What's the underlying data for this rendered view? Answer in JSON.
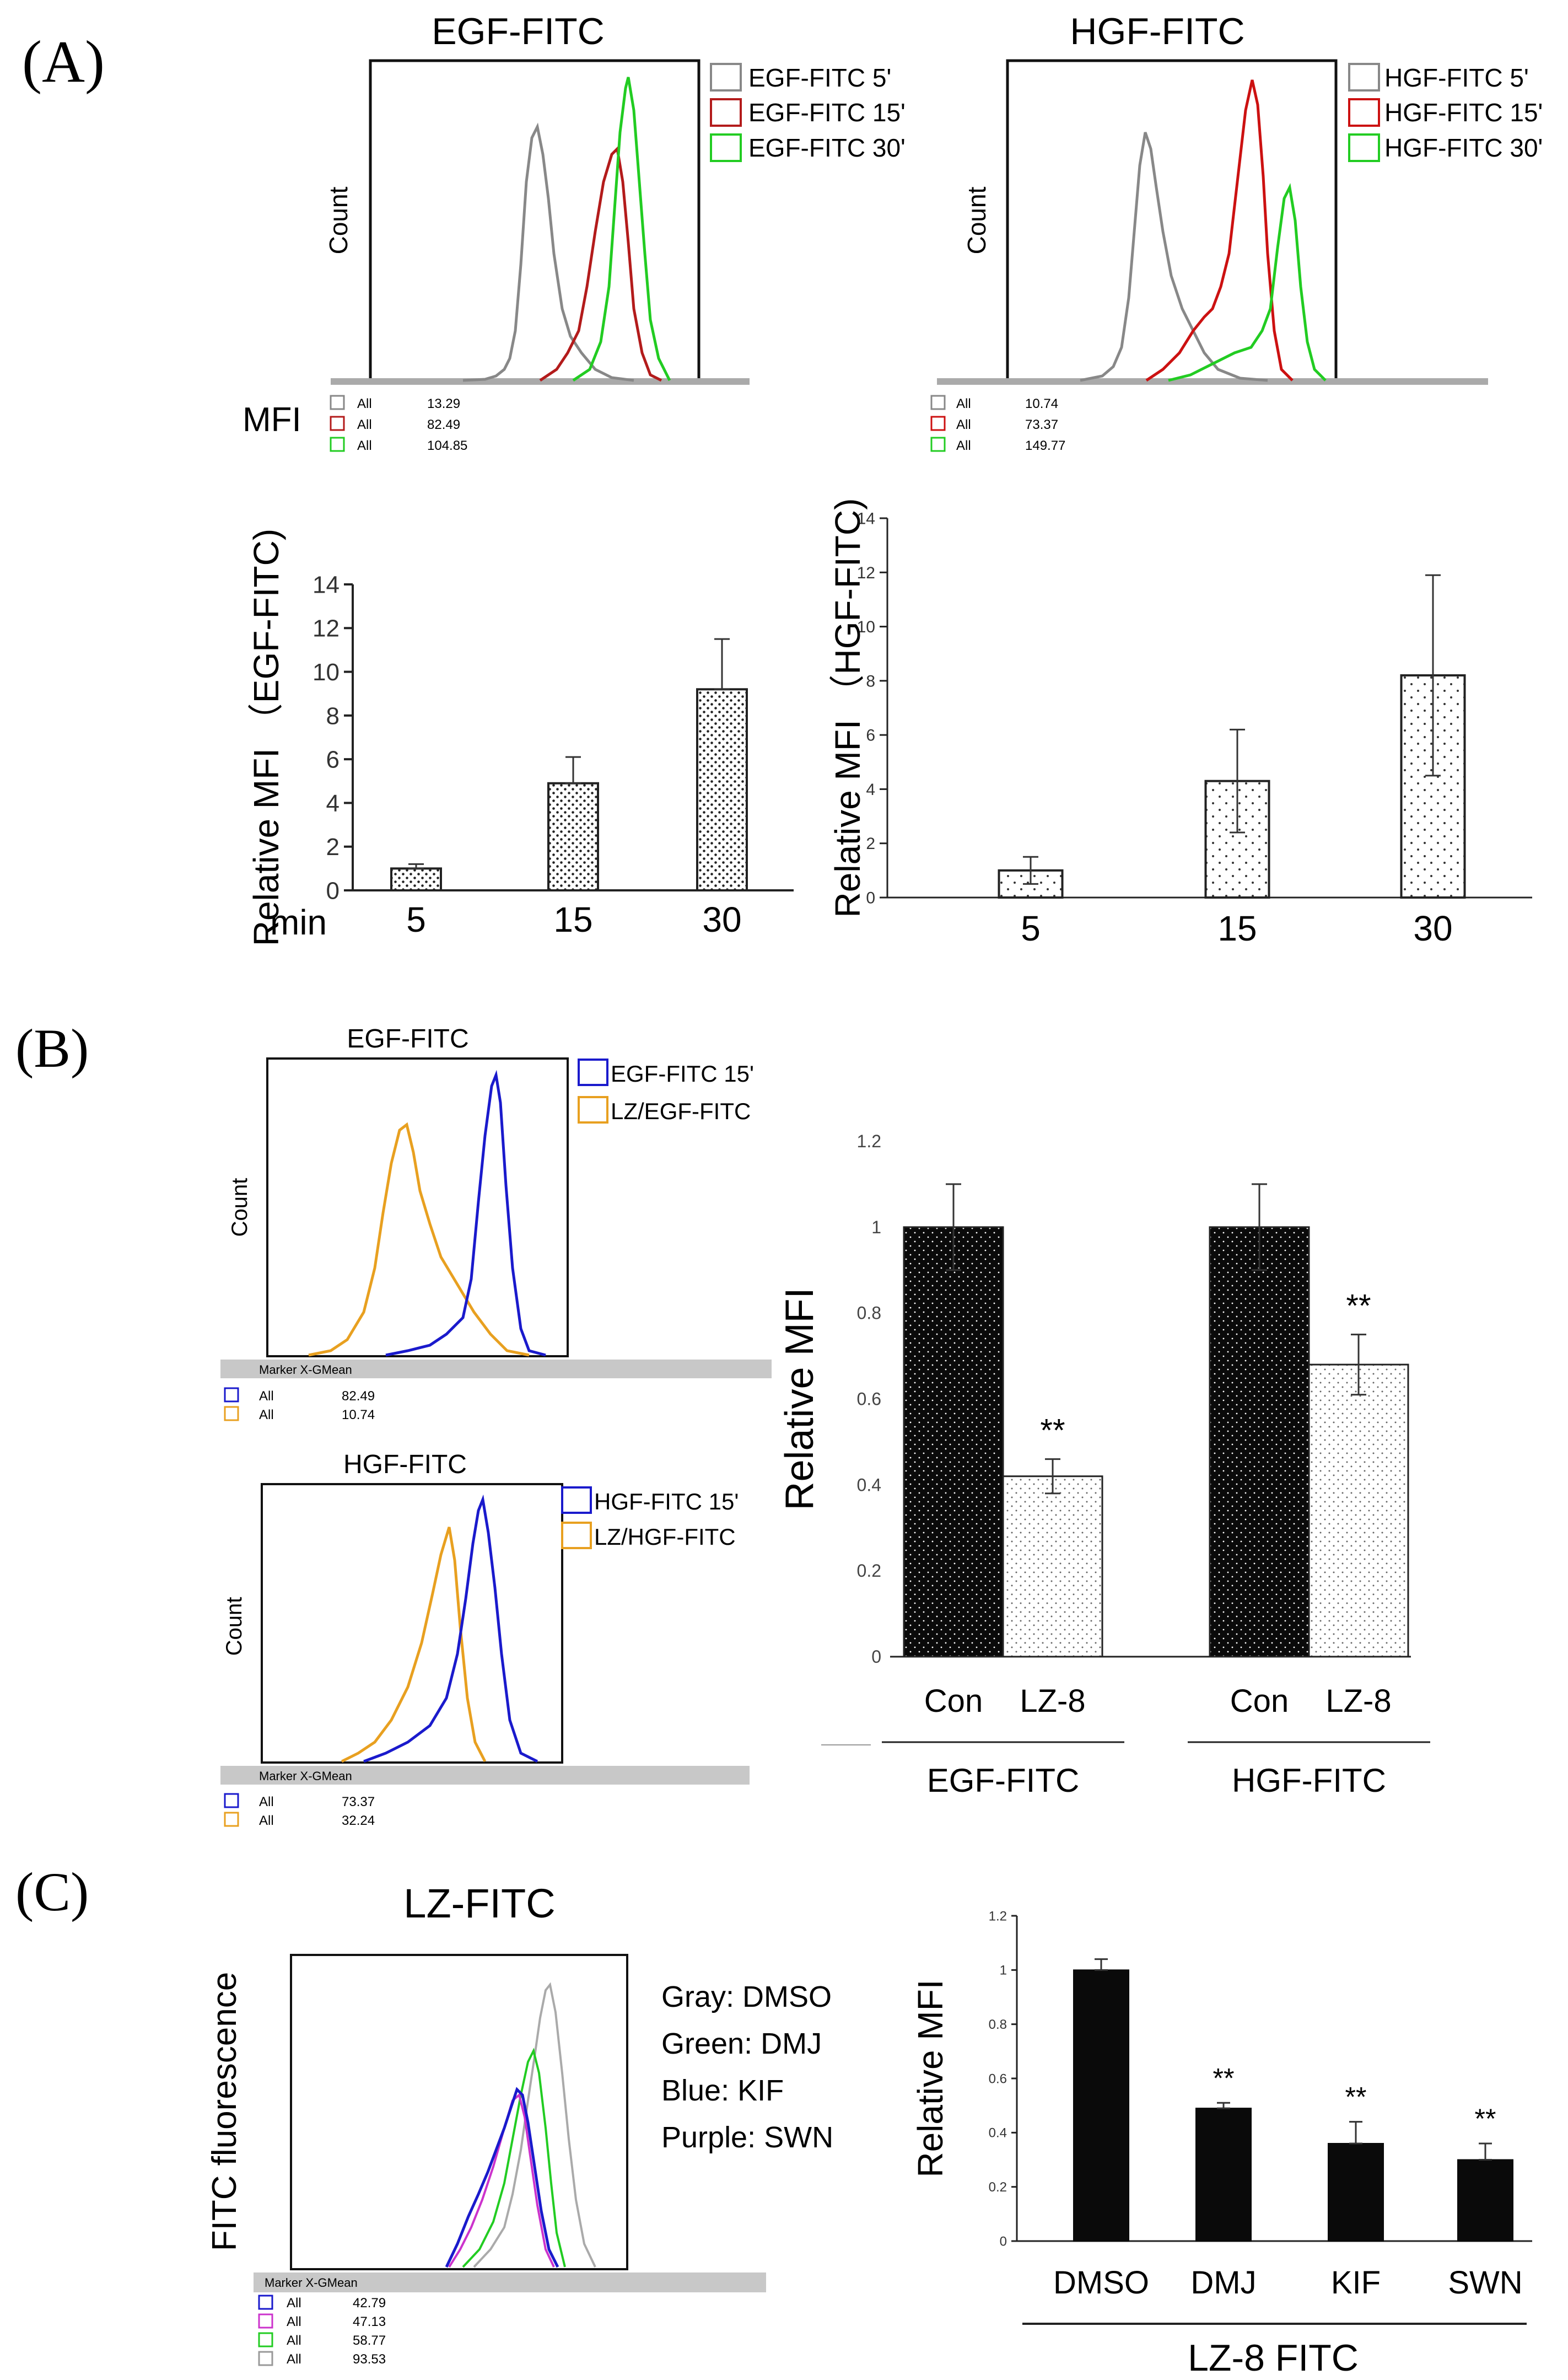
{
  "panels": {
    "A": {
      "label": "(A)",
      "egf_hist": {
        "title": "EGF-FITC",
        "y_label": "Count",
        "legend": [
          "EGF-FITC 5'",
          "EGF-FITC 15'",
          "EGF-FITC 30'"
        ],
        "colors": [
          "#888888",
          "#b31b1b",
          "#22cc22"
        ],
        "stats_prefix": "MFI",
        "stats": [
          {
            "name": "All",
            "value": "13.29"
          },
          {
            "name": "All",
            "value": "82.49"
          },
          {
            "name": "All",
            "value": "104.85"
          }
        ]
      },
      "hgf_hist": {
        "title": "HGF-FITC",
        "y_label": "Count",
        "legend": [
          "HGF-FITC 5'",
          "HGF-FITC 15'",
          "HGF-FITC 30'"
        ],
        "colors": [
          "#888888",
          "#cc1111",
          "#22cc22"
        ],
        "stats": [
          {
            "name": "All",
            "value": "10.74"
          },
          {
            "name": "All",
            "value": "73.37"
          },
          {
            "name": "All",
            "value": "149.77"
          }
        ]
      }
    },
    "B": {
      "label": "(B)",
      "egf_hist": {
        "title": "EGF-FITC",
        "y_label": "Count",
        "legend": [
          "EGF-FITC 15'",
          "LZ/EGF-FITC"
        ],
        "colors": [
          "#1a1acc",
          "#e8a020"
        ],
        "stats_header": "Marker X-GMean",
        "stats": [
          {
            "name": "All",
            "value": "82.49"
          },
          {
            "name": "All",
            "value": "10.74"
          }
        ]
      },
      "hgf_hist": {
        "title": "HGF-FITC",
        "y_label": "Count",
        "legend": [
          "HGF-FITC 15'",
          "LZ/HGF-FITC"
        ],
        "colors": [
          "#1a1acc",
          "#e8a020"
        ],
        "stats_header": "Marker X-GMean",
        "stats": [
          {
            "name": "All",
            "value": "73.37"
          },
          {
            "name": "All",
            "value": "32.24"
          }
        ]
      }
    },
    "C": {
      "label": "(C)",
      "hist": {
        "title": "LZ-FITC",
        "y_label": "FITC fluorescence",
        "legend_text": [
          "Gray: DMSO",
          "Green: DMJ",
          "Blue: KIF",
          "Purple: SWN"
        ],
        "colors": [
          "#1a1acc",
          "#cc33cc",
          "#22cc22",
          "#999999"
        ],
        "stats_header": "Marker X-GMean",
        "stats": [
          {
            "name": "All",
            "value": "42.79"
          },
          {
            "name": "All",
            "value": "47.13"
          },
          {
            "name": "All",
            "value": "58.77"
          },
          {
            "name": "All",
            "value": "93.53"
          }
        ]
      }
    }
  },
  "chart_data": [
    {
      "id": "A-egf-bar",
      "type": "bar",
      "ylabel": "Relative MFI （EGF-FITC)",
      "xlabel": "min",
      "categories": [
        "5",
        "15",
        "30"
      ],
      "values": [
        1.0,
        4.9,
        9.2
      ],
      "errors": [
        0.2,
        1.2,
        2.3
      ],
      "ylim": [
        0,
        14
      ],
      "yticks": [
        "0",
        "2",
        "4",
        "6",
        "8",
        "10",
        "12",
        "14"
      ],
      "fill": "dots-dense"
    },
    {
      "id": "A-hgf-bar",
      "type": "bar",
      "ylabel": "Relative MFI （HGF-FITC)",
      "xlabel": "",
      "categories": [
        "5",
        "15",
        "30"
      ],
      "values": [
        1.0,
        4.3,
        8.2
      ],
      "errors": [
        0.5,
        1.9,
        3.7
      ],
      "ylim": [
        0,
        14
      ],
      "yticks": [
        "0",
        "2",
        "4",
        "6",
        "8",
        "10",
        "12",
        "14"
      ],
      "fill": "dots-sparse"
    },
    {
      "id": "B-bar",
      "type": "bar",
      "ylabel": "Relative MFI",
      "ylim": [
        0,
        1.2
      ],
      "yticks": [
        "0",
        "0.2",
        "0.4",
        "0.6",
        "0.8",
        "1",
        "1.2"
      ],
      "groups": [
        {
          "name": "EGF-FITC",
          "categories": [
            "Con",
            "LZ-8"
          ],
          "values": [
            1.0,
            0.42
          ],
          "errors": [
            0.1,
            0.04
          ],
          "marks": [
            "",
            "**"
          ]
        },
        {
          "name": "HGF-FITC",
          "categories": [
            "Con",
            "LZ-8"
          ],
          "values": [
            1.0,
            0.68
          ],
          "errors": [
            0.1,
            0.07
          ],
          "marks": [
            "",
            "**"
          ]
        }
      ]
    },
    {
      "id": "C-bar",
      "type": "bar",
      "ylabel": "Relative MFI",
      "xlabel": "LZ-8 FITC",
      "categories": [
        "DMSO",
        "DMJ",
        "KIF",
        "SWN"
      ],
      "values": [
        1.0,
        0.49,
        0.36,
        0.3
      ],
      "errors": [
        0.04,
        0.02,
        0.08,
        0.06
      ],
      "marks": [
        "",
        "**",
        "**",
        "**"
      ],
      "ylim": [
        0,
        1.2
      ],
      "yticks": [
        "0",
        "0.2",
        "0.4",
        "0.6",
        "0.8",
        "1",
        "1.2"
      ]
    }
  ]
}
